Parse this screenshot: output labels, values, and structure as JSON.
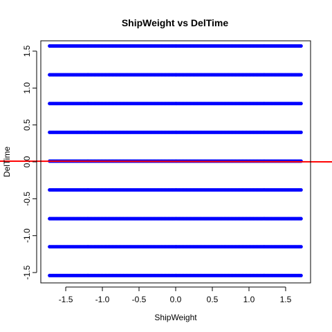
{
  "chart_data": {
    "type": "scatter",
    "title": "ShipWeight vs DelTime",
    "xlabel": "ShipWeight",
    "ylabel": "DelTime",
    "xlim": [
      -1.84,
      1.84
    ],
    "ylim": [
      -1.64,
      1.64
    ],
    "x_ticks": [
      -1.5,
      -1.0,
      -0.5,
      0.0,
      0.5,
      1.0,
      1.5
    ],
    "x_tick_labels": [
      "-1.5",
      "-1.0",
      "-0.5",
      "0.0",
      "0.5",
      "1.0",
      "1.5"
    ],
    "y_ticks": [
      -1.5,
      -1.0,
      -0.5,
      0.0,
      0.5,
      1.0,
      1.5
    ],
    "y_tick_labels": [
      "-1.5",
      "-1.0",
      "-0.5",
      "0.0",
      "0.5",
      "1.0",
      "1.5"
    ],
    "grid": false,
    "point_color": "#0000ff",
    "line_color": "#ff0000",
    "series": [
      {
        "type": "points",
        "x_range": [
          -1.72,
          1.71
        ],
        "y_levels": [
          -1.54,
          -1.15,
          -0.77,
          -0.38,
          0.01,
          0.4,
          0.79,
          1.18,
          1.57
        ]
      },
      {
        "type": "fit-line",
        "intercept": 0.005,
        "slope": -0.002
      }
    ]
  }
}
